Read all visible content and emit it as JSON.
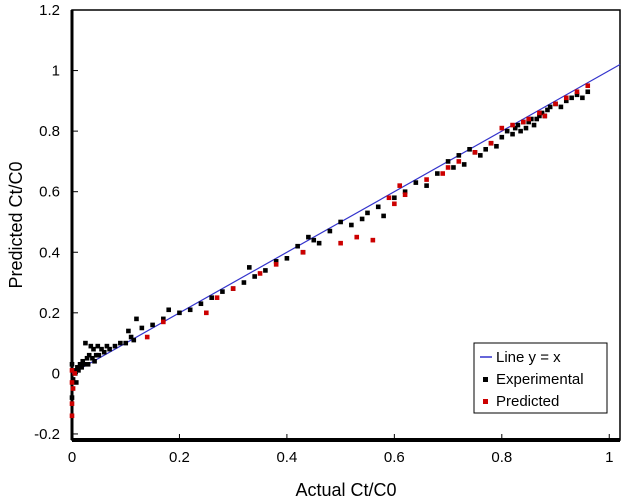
{
  "chart_data": {
    "type": "scatter",
    "title": "",
    "xlabel": "Actual Ct/C0",
    "ylabel": "Predicted Ct/C0",
    "xlim": [
      0,
      1.02
    ],
    "ylim": [
      -0.22,
      1.2
    ],
    "xticks": [
      0,
      0.2,
      0.4,
      0.6,
      0.8,
      1
    ],
    "xtick_labels": [
      "0",
      "0.2",
      "0.4",
      "0.6",
      "0.8",
      "1"
    ],
    "yticks": [
      -0.2,
      0,
      0.2,
      0.4,
      0.6,
      0.8,
      1,
      1.2
    ],
    "ytick_labels": [
      "-0.2",
      "0",
      "0.2",
      "0.4",
      "0.6",
      "0.8",
      "1",
      "1.2"
    ],
    "grid": false,
    "legend_position": "bottom-right",
    "line": {
      "name": "Line y = x",
      "x": [
        0,
        1.02
      ],
      "y": [
        0,
        1.02
      ],
      "color": "#3333cc"
    },
    "series": [
      {
        "name": "Experimental",
        "color": "#000000",
        "x": [
          0.0,
          0.0,
          0.002,
          0.004,
          0.006,
          0.008,
          0.01,
          0.012,
          0.015,
          0.018,
          0.02,
          0.022,
          0.025,
          0.028,
          0.03,
          0.032,
          0.035,
          0.038,
          0.04,
          0.042,
          0.045,
          0.048,
          0.05,
          0.055,
          0.06,
          0.065,
          0.07,
          0.08,
          0.09,
          0.1,
          0.105,
          0.11,
          0.115,
          0.12,
          0.13,
          0.15,
          0.17,
          0.18,
          0.2,
          0.22,
          0.24,
          0.26,
          0.28,
          0.3,
          0.32,
          0.33,
          0.34,
          0.36,
          0.38,
          0.4,
          0.42,
          0.43,
          0.44,
          0.45,
          0.46,
          0.48,
          0.5,
          0.52,
          0.54,
          0.55,
          0.57,
          0.58,
          0.6,
          0.62,
          0.64,
          0.66,
          0.68,
          0.7,
          0.71,
          0.72,
          0.73,
          0.74,
          0.75,
          0.76,
          0.77,
          0.78,
          0.79,
          0.8,
          0.81,
          0.82,
          0.825,
          0.83,
          0.835,
          0.84,
          0.845,
          0.85,
          0.855,
          0.86,
          0.865,
          0.87,
          0.875,
          0.88,
          0.885,
          0.89,
          0.9,
          0.91,
          0.92,
          0.93,
          0.94,
          0.95,
          0.96
        ],
        "y": [
          0.03,
          -0.08,
          -0.02,
          0.01,
          0.0,
          -0.03,
          0.02,
          0.01,
          0.03,
          0.02,
          0.04,
          0.03,
          0.1,
          0.05,
          0.03,
          0.06,
          0.09,
          0.05,
          0.08,
          0.04,
          0.06,
          0.09,
          0.06,
          0.08,
          0.07,
          0.09,
          0.08,
          0.09,
          0.1,
          0.1,
          0.14,
          0.12,
          0.11,
          0.18,
          0.15,
          0.16,
          0.18,
          0.21,
          0.2,
          0.21,
          0.23,
          0.25,
          0.27,
          0.28,
          0.3,
          0.35,
          0.32,
          0.34,
          0.37,
          0.38,
          0.42,
          0.4,
          0.45,
          0.44,
          0.43,
          0.47,
          0.5,
          0.49,
          0.51,
          0.53,
          0.55,
          0.52,
          0.58,
          0.6,
          0.63,
          0.62,
          0.66,
          0.7,
          0.68,
          0.72,
          0.69,
          0.74,
          0.73,
          0.72,
          0.74,
          0.76,
          0.75,
          0.78,
          0.8,
          0.79,
          0.81,
          0.82,
          0.8,
          0.83,
          0.81,
          0.83,
          0.84,
          0.82,
          0.84,
          0.85,
          0.86,
          0.85,
          0.87,
          0.88,
          0.89,
          0.88,
          0.9,
          0.91,
          0.92,
          0.91,
          0.93
        ]
      },
      {
        "name": "Predicted",
        "color": "#cc0000",
        "x": [
          0.0,
          0.0,
          0.0,
          0.002,
          0.0,
          0.005,
          0.14,
          0.17,
          0.25,
          0.27,
          0.3,
          0.35,
          0.38,
          0.43,
          0.5,
          0.53,
          0.56,
          0.59,
          0.6,
          0.61,
          0.62,
          0.66,
          0.69,
          0.7,
          0.72,
          0.75,
          0.78,
          0.8,
          0.82,
          0.84,
          0.85,
          0.87,
          0.88,
          0.9,
          0.92,
          0.94,
          0.96
        ],
        "y": [
          -0.03,
          -0.1,
          -0.14,
          -0.05,
          0.01,
          0.0,
          0.12,
          0.17,
          0.2,
          0.25,
          0.28,
          0.33,
          0.36,
          0.4,
          0.43,
          0.45,
          0.44,
          0.58,
          0.56,
          0.62,
          0.59,
          0.64,
          0.66,
          0.68,
          0.7,
          0.73,
          0.76,
          0.81,
          0.82,
          0.83,
          0.84,
          0.86,
          0.85,
          0.89,
          0.91,
          0.93,
          0.95
        ]
      }
    ]
  }
}
